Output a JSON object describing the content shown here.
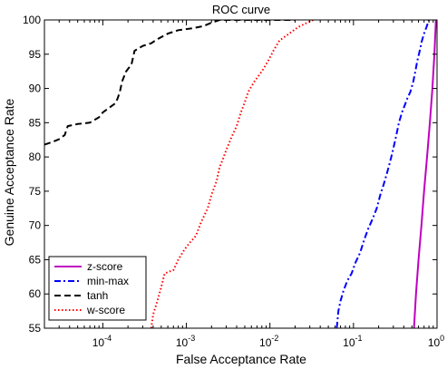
{
  "chart_data": {
    "type": "line",
    "title": "ROC curve",
    "xlabel": "False Acceptance Rate",
    "ylabel": "Genuine Acceptance Rate",
    "xscale": "log",
    "xlim": [
      2e-05,
      1
    ],
    "ylim": [
      55,
      100
    ],
    "x_ticks": [
      {
        "value": 0.0001,
        "base": "10",
        "exp": "-4"
      },
      {
        "value": 0.001,
        "base": "10",
        "exp": "-3"
      },
      {
        "value": 0.01,
        "base": "10",
        "exp": "-2"
      },
      {
        "value": 0.1,
        "base": "10",
        "exp": "-1"
      },
      {
        "value": 1,
        "base": "10",
        "exp": "0"
      }
    ],
    "y_ticks": [
      55,
      60,
      65,
      70,
      75,
      80,
      85,
      90,
      95,
      100
    ],
    "grid": false,
    "legend_position": "bottom-left",
    "series": [
      {
        "name": "z-score",
        "color": "#c000c0",
        "dash": "solid",
        "points": [
          [
            0.53,
            55
          ],
          [
            0.56,
            60
          ],
          [
            0.6,
            65
          ],
          [
            0.65,
            70
          ],
          [
            0.7,
            75
          ],
          [
            0.76,
            80
          ],
          [
            0.82,
            85
          ],
          [
            0.88,
            90
          ],
          [
            0.93,
            95
          ],
          [
            0.97,
            100
          ]
        ]
      },
      {
        "name": "min-max",
        "color": "#0000ff",
        "dash": "dashdot",
        "points": [
          [
            0.063,
            55
          ],
          [
            0.066,
            57.5
          ],
          [
            0.07,
            59
          ],
          [
            0.076,
            60.5
          ],
          [
            0.085,
            62
          ],
          [
            0.095,
            63
          ],
          [
            0.105,
            64.5
          ],
          [
            0.12,
            66
          ],
          [
            0.135,
            68
          ],
          [
            0.15,
            69.5
          ],
          [
            0.17,
            71
          ],
          [
            0.19,
            72.5
          ],
          [
            0.21,
            74.5
          ],
          [
            0.23,
            76
          ],
          [
            0.25,
            77.5
          ],
          [
            0.27,
            79
          ],
          [
            0.29,
            80.5
          ],
          [
            0.31,
            82
          ],
          [
            0.33,
            83.5
          ],
          [
            0.35,
            85
          ],
          [
            0.38,
            86.5
          ],
          [
            0.41,
            87.5
          ],
          [
            0.44,
            88.5
          ],
          [
            0.48,
            89.5
          ],
          [
            0.52,
            91
          ],
          [
            0.55,
            92.5
          ],
          [
            0.58,
            94
          ],
          [
            0.62,
            95.5
          ],
          [
            0.66,
            97
          ],
          [
            0.7,
            98
          ],
          [
            0.75,
            99
          ],
          [
            0.8,
            100
          ]
        ]
      },
      {
        "name": "tanh",
        "color": "#000000",
        "dash": "dashed",
        "points": [
          [
            2e-05,
            81.8
          ],
          [
            2.5e-05,
            82.2
          ],
          [
            3e-05,
            82.6
          ],
          [
            3.5e-05,
            83.2
          ],
          [
            3.8e-05,
            84.5
          ],
          [
            5e-05,
            84.8
          ],
          [
            7e-05,
            85
          ],
          [
            9e-05,
            85.8
          ],
          [
            0.0001,
            86.5
          ],
          [
            0.00012,
            87.2
          ],
          [
            0.00014,
            87.8
          ],
          [
            0.00015,
            88.5
          ],
          [
            0.00016,
            89.5
          ],
          [
            0.00017,
            91
          ],
          [
            0.00019,
            92.5
          ],
          [
            0.00022,
            93.5
          ],
          [
            0.00023,
            94.5
          ],
          [
            0.00024,
            95.5
          ],
          [
            0.0003,
            96.2
          ],
          [
            0.00038,
            96.6
          ],
          [
            0.00045,
            97.2
          ],
          [
            0.0006,
            98
          ],
          [
            0.0008,
            98.5
          ],
          [
            0.0012,
            98.8
          ],
          [
            0.0016,
            99.1
          ],
          [
            0.002,
            99.6
          ],
          [
            0.0025,
            100
          ],
          [
            0.02,
            100
          ]
        ]
      },
      {
        "name": "w-score",
        "color": "#ff0000",
        "dash": "dotted",
        "points": [
          [
            0.00038,
            55
          ],
          [
            0.0004,
            57
          ],
          [
            0.00045,
            59
          ],
          [
            0.0005,
            61
          ],
          [
            0.00055,
            63
          ],
          [
            0.0007,
            63.5
          ],
          [
            0.0008,
            65
          ],
          [
            0.00095,
            66.5
          ],
          [
            0.0011,
            67.5
          ],
          [
            0.0013,
            68.5
          ],
          [
            0.0015,
            70.5
          ],
          [
            0.0018,
            72.5
          ],
          [
            0.002,
            74.5
          ],
          [
            0.0023,
            76.5
          ],
          [
            0.0025,
            78.5
          ],
          [
            0.0027,
            79.5
          ],
          [
            0.003,
            81
          ],
          [
            0.0035,
            83
          ],
          [
            0.004,
            84.5
          ],
          [
            0.0045,
            86.5
          ],
          [
            0.005,
            88
          ],
          [
            0.0055,
            89.5
          ],
          [
            0.0065,
            91
          ],
          [
            0.008,
            92.5
          ],
          [
            0.0095,
            94
          ],
          [
            0.011,
            95.5
          ],
          [
            0.013,
            97
          ],
          [
            0.017,
            98
          ],
          [
            0.022,
            99
          ],
          [
            0.028,
            99.6
          ],
          [
            0.033,
            100
          ]
        ]
      }
    ]
  }
}
